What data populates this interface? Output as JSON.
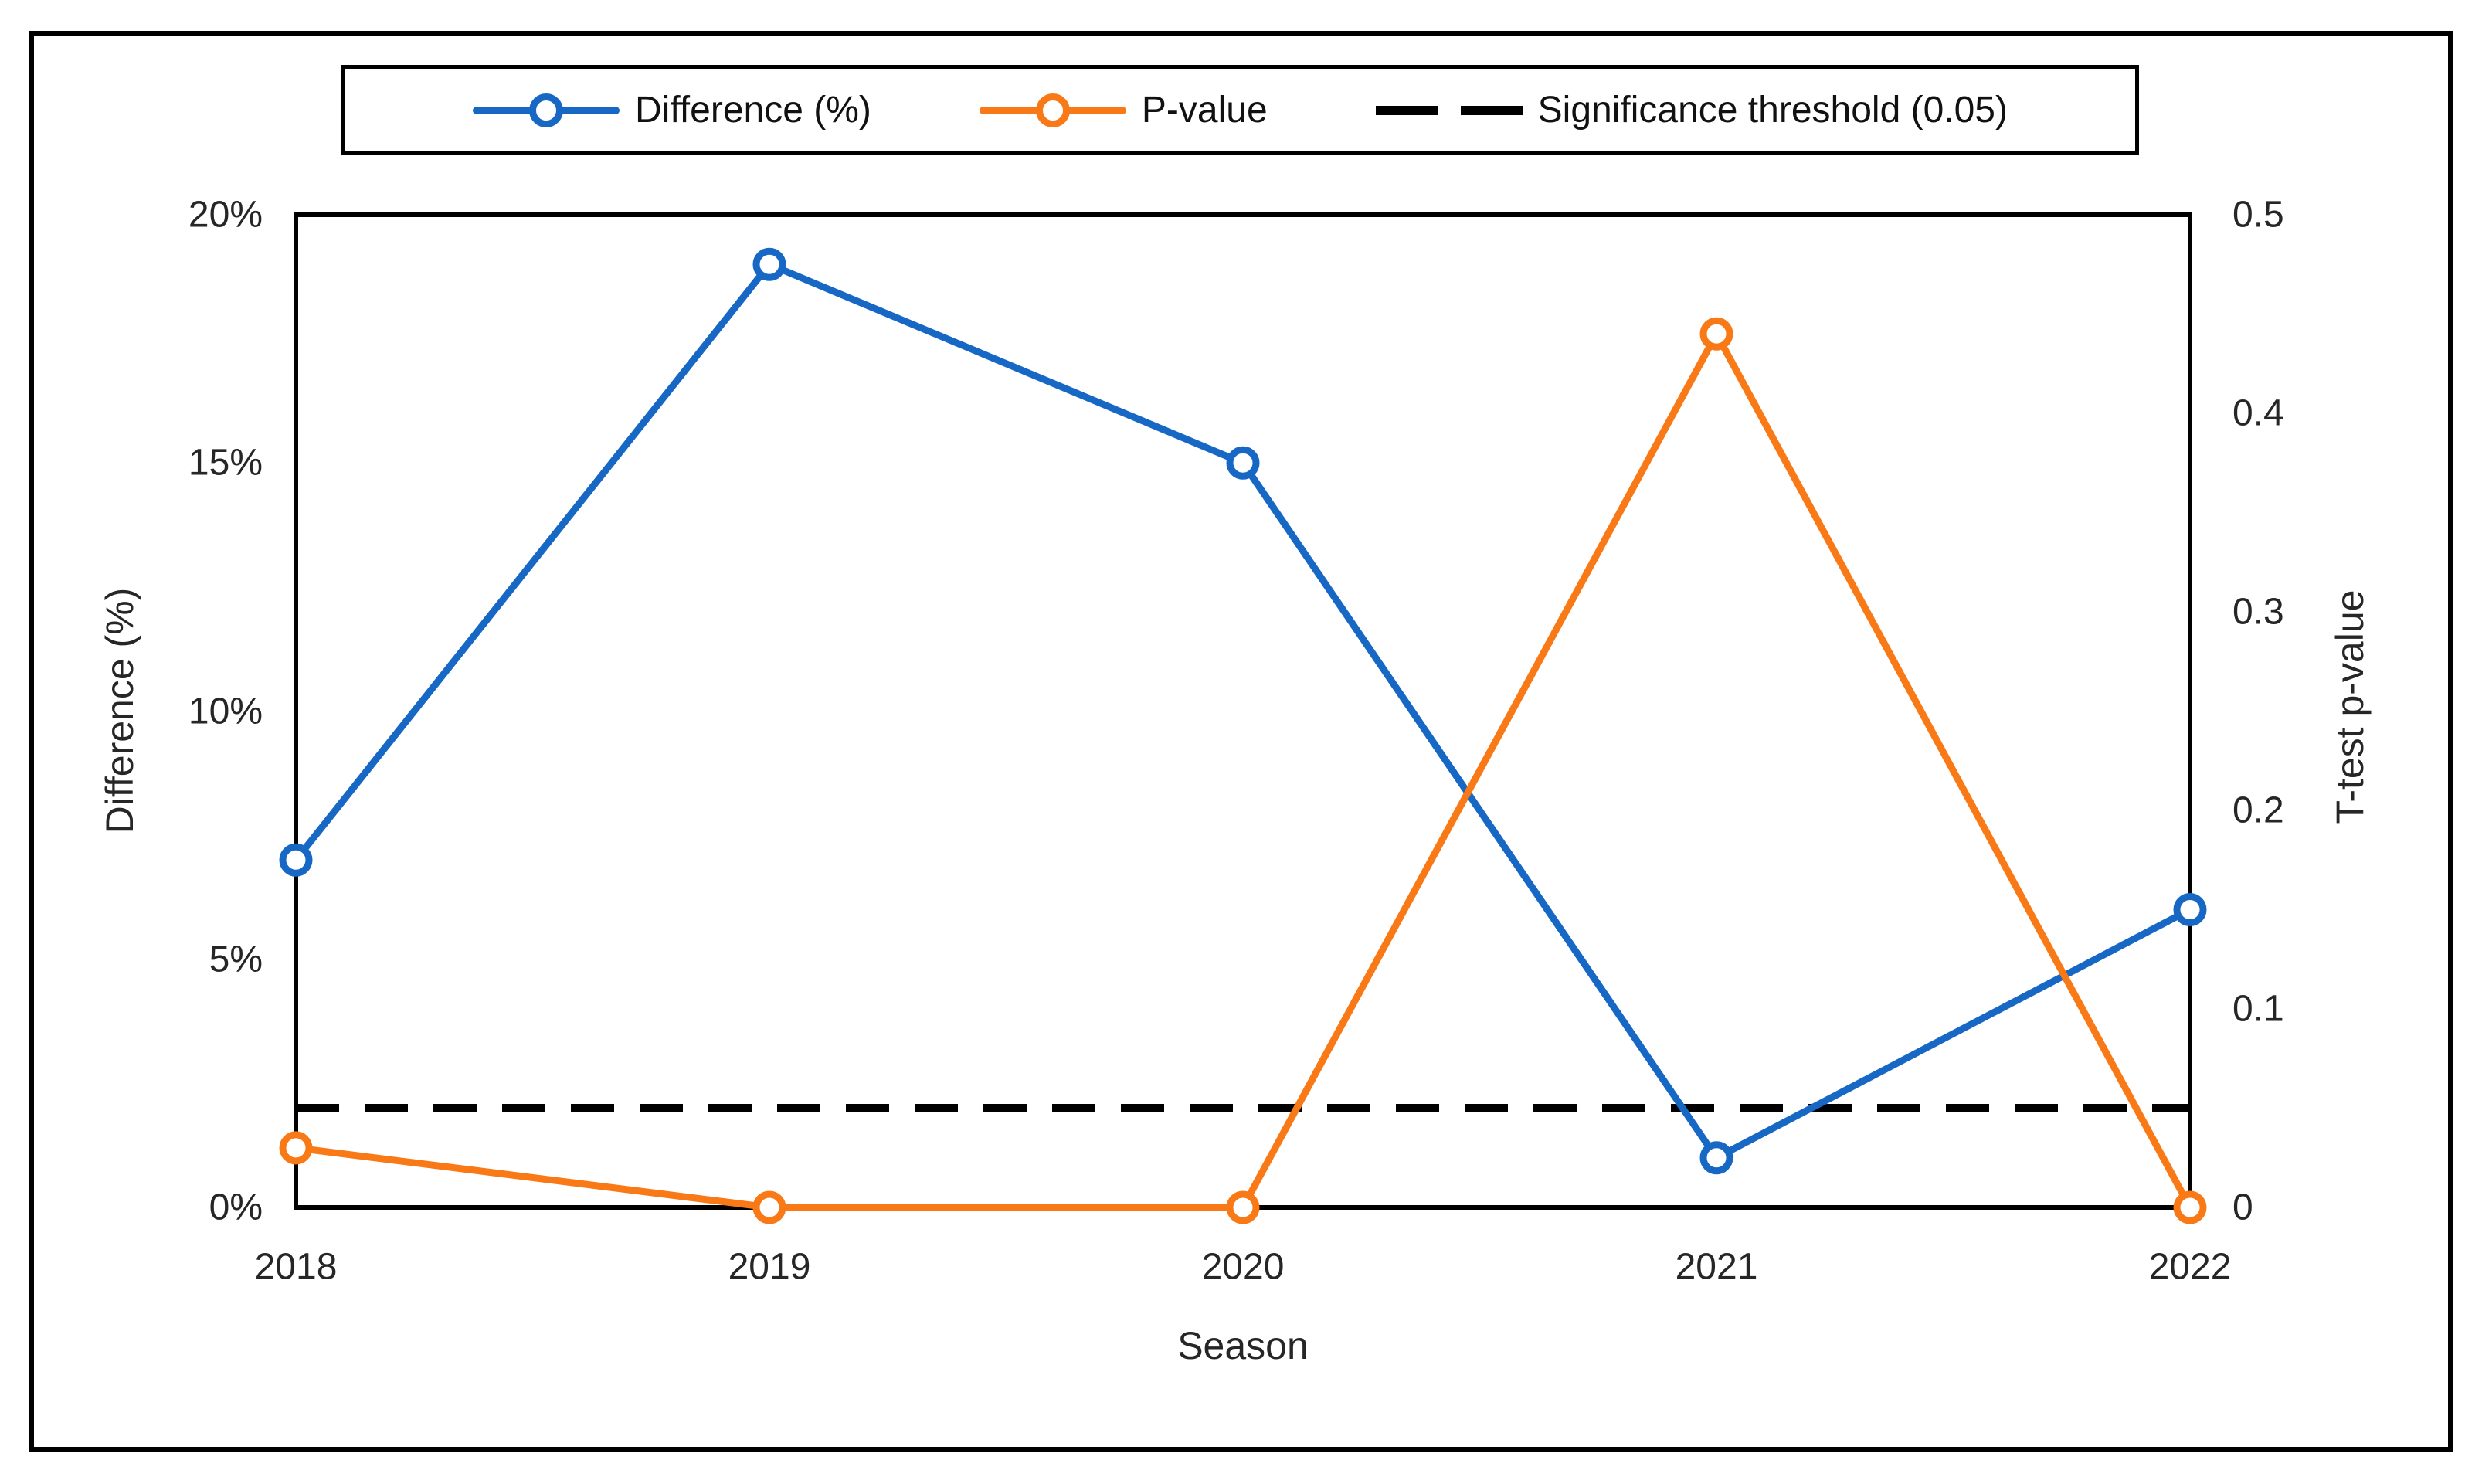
{
  "page": {
    "background": "#ffffff",
    "outer_border_color": "#000000"
  },
  "chart_data": {
    "type": "line",
    "x_categories": [
      "2018",
      "2019",
      "2020",
      "2021",
      "2022"
    ],
    "xlabel": "Season",
    "left_axis": {
      "label": "Difference (%)",
      "min": 0,
      "max": 20,
      "ticks": [
        "0%",
        "5%",
        "10%",
        "15%",
        "20%"
      ]
    },
    "right_axis": {
      "label": "T-test p-value",
      "min": 0,
      "max": 0.5,
      "ticks": [
        "0",
        "0.1",
        "0.2",
        "0.3",
        "0.4",
        "0.5"
      ]
    },
    "series": [
      {
        "name": "Difference (%)",
        "axis": "left",
        "color": "#1768c5",
        "marker": "open-circle",
        "values": [
          7,
          19,
          15,
          1,
          6
        ]
      },
      {
        "name": "P-value",
        "axis": "right",
        "color": "#f97916",
        "marker": "open-circle",
        "values": [
          0.03,
          0,
          0,
          0.44,
          0
        ]
      }
    ],
    "threshold": {
      "name": "Significance threshold (0.05)",
      "axis": "right",
      "value": 0.05,
      "color": "#000000",
      "style": "dashed"
    },
    "grid": false,
    "legend_position": "top"
  }
}
